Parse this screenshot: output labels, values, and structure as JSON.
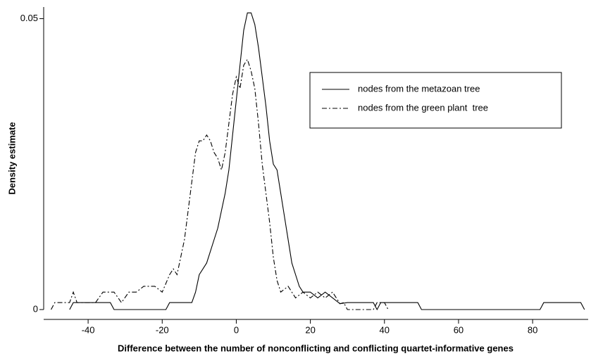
{
  "chart_data": {
    "type": "line",
    "xlabel": "Difference between the number of nonconflicting and conflicting quartet-informative genes",
    "ylabel": "Density estimate",
    "xlim": [
      -52,
      95
    ],
    "ylim": [
      0,
      0.052
    ],
    "xticks": [
      -40,
      -20,
      0,
      20,
      40,
      60,
      80
    ],
    "yticks": [
      0,
      0.05
    ],
    "legend": "upper right",
    "series": [
      {
        "name": "nodes from the metazoan tree",
        "color": "#000000",
        "dash": "solid",
        "x": [
          -45,
          -44,
          -34,
          -33,
          -19,
          -18,
          -12,
          -11,
          -10,
          -8,
          -6,
          -5,
          -4,
          -3,
          -2,
          -1,
          0,
          1,
          2,
          3,
          4,
          5,
          6,
          7,
          8,
          9,
          10,
          11,
          12,
          13,
          14,
          15,
          16,
          17,
          18,
          20,
          22,
          24,
          26,
          28,
          30,
          37,
          38,
          39,
          49,
          50,
          82,
          83,
          93,
          94
        ],
        "values": [
          0,
          0.0012,
          0.0012,
          0,
          0,
          0.0012,
          0.0012,
          0.003,
          0.006,
          0.008,
          0.012,
          0.014,
          0.017,
          0.02,
          0.024,
          0.03,
          0.036,
          0.042,
          0.048,
          0.051,
          0.051,
          0.049,
          0.045,
          0.04,
          0.035,
          0.029,
          0.025,
          0.024,
          0.02,
          0.016,
          0.012,
          0.008,
          0.006,
          0.004,
          0.003,
          0.003,
          0.002,
          0.003,
          0.002,
          0.001,
          0.0012,
          0.0012,
          0,
          0.0012,
          0.0012,
          0,
          0,
          0.0012,
          0.0012,
          0
        ]
      },
      {
        "name": "nodes from the green plant  tree",
        "color": "#000000",
        "dash": "dashdot",
        "x": [
          -50,
          -49,
          -45,
          -44,
          -43,
          -38,
          -36,
          -33,
          -31,
          -29,
          -27,
          -25,
          -22,
          -20,
          -18,
          -17,
          -16,
          -15,
          -14,
          -13,
          -12,
          -11,
          -10,
          -9,
          -8,
          -7,
          -6,
          -5,
          -4,
          -3,
          -2,
          -1,
          0,
          1,
          2,
          3,
          4,
          5,
          6,
          7,
          8,
          9,
          10,
          11,
          12,
          14,
          16,
          18,
          20,
          22,
          24,
          26,
          28,
          29,
          30,
          37,
          38,
          40,
          41
        ],
        "values": [
          0,
          0.0012,
          0.0012,
          0.003,
          0.0012,
          0.0012,
          0.003,
          0.003,
          0.0012,
          0.003,
          0.003,
          0.004,
          0.004,
          0.003,
          0.006,
          0.007,
          0.006,
          0.009,
          0.012,
          0.017,
          0.022,
          0.027,
          0.029,
          0.029,
          0.03,
          0.029,
          0.027,
          0.026,
          0.024,
          0.027,
          0.032,
          0.037,
          0.04,
          0.038,
          0.042,
          0.043,
          0.041,
          0.038,
          0.032,
          0.025,
          0.02,
          0.015,
          0.009,
          0.005,
          0.003,
          0.004,
          0.002,
          0.003,
          0.002,
          0.003,
          0.002,
          0.003,
          0.001,
          0.0012,
          0,
          0,
          0.0012,
          0.0012,
          0
        ]
      }
    ]
  }
}
